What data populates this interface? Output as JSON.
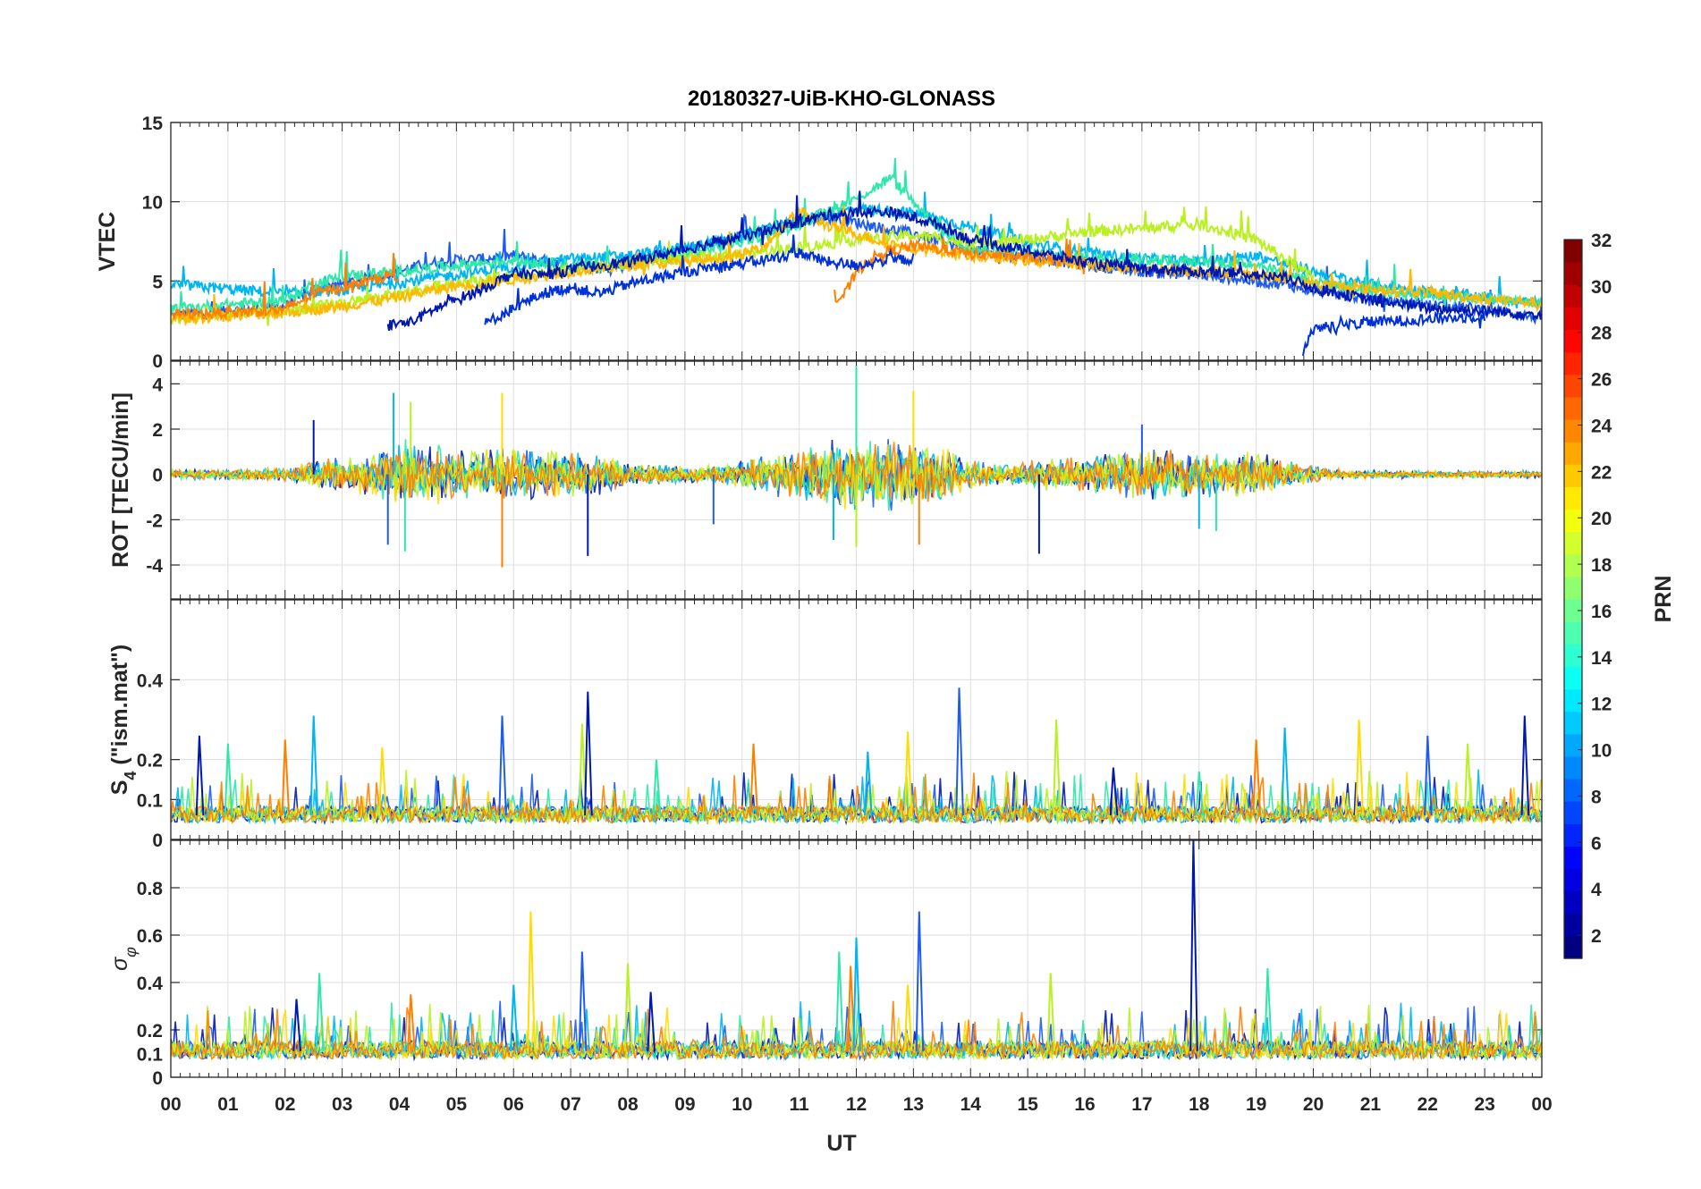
{
  "chart_data": {
    "type": "line",
    "title": "20180327-UiB-KHO-GLONASS",
    "xlabel": "UT",
    "x_ticks": [
      "00",
      "01",
      "02",
      "03",
      "04",
      "05",
      "06",
      "07",
      "08",
      "09",
      "10",
      "11",
      "12",
      "13",
      "14",
      "15",
      "16",
      "17",
      "18",
      "19",
      "20",
      "21",
      "22",
      "23",
      "00"
    ],
    "xlim": [
      0,
      24
    ],
    "grid": true,
    "panels": [
      {
        "name": "vtec",
        "ylabel": "VTEC",
        "ylim": [
          0,
          15
        ],
        "yticks": [
          "0",
          "5",
          "10",
          "15"
        ],
        "series": [
          {
            "prn": 7,
            "color": "#1e5cf0",
            "x": [
              0,
              1,
              2,
              2.5,
              3,
              3.5,
              4,
              4.5,
              5,
              5.5,
              6,
              6.5,
              7,
              7.5,
              8,
              8.5,
              9,
              9.5,
              10,
              10.5,
              11,
              11.5,
              12,
              12.5,
              13,
              13.5,
              14,
              14.5,
              15,
              15.5,
              16,
              16.5,
              17,
              17.5,
              18,
              18.5,
              19,
              19.5,
              20,
              20.5,
              21,
              21.5,
              22,
              22.5,
              23,
              23.5,
              24
            ],
            "y": [
              2.8,
              3.1,
              3.4,
              4.5,
              4.8,
              5.2,
              5.6,
              6.1,
              6.3,
              6.4,
              6.6,
              6.3,
              6.0,
              5.8,
              6.0,
              6.5,
              7.0,
              7.4,
              7.9,
              8.4,
              8.8,
              9.0,
              8.7,
              8.3,
              8.0,
              7.4,
              7.0,
              6.7,
              6.5,
              6.3,
              6.0,
              5.8,
              5.6,
              5.5,
              5.4,
              5.2,
              5.0,
              4.8,
              4.4,
              4.1,
              3.9,
              3.7,
              3.5,
              3.4,
              3.2,
              3.0,
              2.6
            ]
          },
          {
            "prn": 11,
            "color": "#00b5f0",
            "x": [
              0,
              1,
              2,
              3,
              4,
              5,
              6,
              7,
              8,
              9,
              10,
              11,
              12,
              13,
              14,
              15,
              16,
              17,
              18,
              19,
              20,
              21,
              22,
              23,
              24
            ],
            "y": [
              4.8,
              4.5,
              4.2,
              4.4,
              4.9,
              5.4,
              5.9,
              6.4,
              6.6,
              7.1,
              7.8,
              8.8,
              9.6,
              9.3,
              8.4,
              7.4,
              6.8,
              6.4,
              6.2,
              6.6,
              5.6,
              4.8,
              4.3,
              4.0,
              3.6
            ]
          },
          {
            "prn": 14,
            "color": "#2ee8a8",
            "x": [
              0,
              1,
              2,
              2.5,
              3,
              4,
              5,
              6,
              7,
              8,
              9,
              10,
              11,
              12,
              12.6,
              13,
              13.5,
              14,
              15,
              16,
              17,
              18,
              19,
              20,
              21,
              22,
              23,
              24
            ],
            "y": [
              3.2,
              3.5,
              3.8,
              4.8,
              5.3,
              5.6,
              6.0,
              6.3,
              6.0,
              6.1,
              6.6,
              7.5,
              8.6,
              10.2,
              11.5,
              10.0,
              8.2,
              7.0,
              6.8,
              6.5,
              6.4,
              6.2,
              6.1,
              5.0,
              4.4,
              4.1,
              3.9,
              3.6
            ]
          },
          {
            "prn": 18,
            "color": "#b8f020",
            "x": [
              0,
              1,
              2,
              3,
              4,
              5,
              6,
              7,
              8,
              9,
              10,
              11,
              12,
              13,
              14,
              15,
              16,
              17,
              18,
              19,
              20
            ],
            "y": [
              2.6,
              2.9,
              3.1,
              3.6,
              4.2,
              4.9,
              5.3,
              5.7,
              6.1,
              6.4,
              6.7,
              7.1,
              7.6,
              7.9,
              7.4,
              7.6,
              8.1,
              8.3,
              8.6,
              7.6,
              5.2
            ]
          },
          {
            "prn": 22,
            "color": "#ffb800",
            "x": [
              0,
              1,
              2,
              3,
              4,
              5,
              6,
              7,
              8,
              9,
              10,
              10.5,
              11,
              11.5,
              12,
              12.5,
              13,
              13.5,
              14,
              15,
              16,
              17,
              18,
              19,
              20,
              21,
              22,
              23,
              24
            ],
            "y": [
              2.6,
              2.8,
              3.0,
              3.4,
              4.0,
              4.7,
              5.1,
              5.6,
              6.0,
              6.2,
              6.6,
              7.6,
              9.4,
              8.5,
              8.0,
              7.4,
              7.1,
              6.9,
              6.6,
              6.3,
              6.0,
              5.8,
              5.6,
              5.4,
              4.8,
              4.5,
              4.3,
              3.9,
              3.6
            ]
          },
          {
            "prn": 24,
            "color": "#ff8000",
            "x": [
              0,
              1,
              2,
              2.5,
              3,
              3.5,
              3.8,
              4,
              11.6,
              11.8,
              12.0,
              12.2,
              12.5,
              13,
              13.5,
              14,
              15,
              15.5,
              16
            ],
            "y": [
              2.9,
              3.0,
              3.2,
              4.2,
              4.6,
              5.0,
              5.4,
              5.2,
              3.6,
              4.2,
              5.5,
              6.3,
              6.8,
              7.2,
              7.0,
              6.7,
              6.5,
              6.3,
              6.2
            ]
          },
          {
            "prn": 2,
            "color": "#0018b0",
            "x": [
              3.8,
              4.2,
              4.6,
              5.0,
              5.5,
              6.0,
              6.5,
              7.0,
              7.5,
              8.0,
              8.5,
              9.0,
              9.5,
              10.0,
              10.5,
              11.0,
              11.5,
              12.0,
              12.5,
              13.0,
              13.5,
              14.0,
              16.0,
              17.0,
              18.0,
              19.0,
              19.5,
              20.0,
              20.5,
              21.0,
              22.0,
              23.0,
              24.0
            ],
            "y": [
              2.2,
              2.4,
              3.2,
              3.8,
              4.6,
              5.5,
              5.4,
              5.7,
              6.0,
              6.2,
              6.6,
              7.0,
              7.4,
              7.8,
              8.2,
              8.7,
              9.2,
              9.3,
              9.4,
              9.0,
              8.5,
              7.6,
              6.2,
              5.8,
              5.6,
              5.4,
              5.2,
              4.6,
              4.2,
              3.8,
              3.3,
              3.1,
              2.9
            ]
          },
          {
            "prn": 4,
            "color": "#0030d8",
            "x": [
              5.5,
              6.0,
              6.5,
              7.0,
              7.5,
              8.0,
              8.5,
              9.0,
              9.5,
              10.0,
              10.5,
              11.0,
              11.5,
              12.0,
              12.5,
              13.0,
              19.8,
              20.0,
              20.5,
              21.0,
              22.0,
              23.0
            ],
            "y": [
              2.3,
              3.3,
              4.2,
              4.6,
              4.2,
              4.8,
              5.2,
              5.6,
              5.9,
              6.1,
              6.4,
              6.8,
              6.2,
              6.0,
              6.3,
              6.4,
              0.2,
              2.0,
              2.2,
              2.4,
              2.6,
              2.8
            ]
          }
        ]
      },
      {
        "name": "rot",
        "ylabel": "ROT [TECU/min]",
        "ylim": [
          -5.5,
          5
        ],
        "yticks": [
          "-4",
          "-2",
          "0",
          "2",
          "4"
        ],
        "envelope": {
          "x": [
            0,
            1,
            2,
            2.5,
            3,
            3.5,
            4,
            4.5,
            5,
            5.5,
            6,
            6.5,
            7,
            7.5,
            8,
            8.5,
            9,
            9.5,
            10,
            10.5,
            11,
            11.5,
            12,
            12.5,
            13,
            13.5,
            14,
            14.5,
            15,
            15.5,
            16,
            16.5,
            17,
            17.5,
            18,
            18.5,
            19,
            19.5,
            20,
            20.5,
            21,
            22,
            23,
            24
          ],
          "amp": [
            0.2,
            0.2,
            0.25,
            0.6,
            0.7,
            0.9,
            1.4,
            1.3,
            1.0,
            1.0,
            1.1,
            1.0,
            0.9,
            0.8,
            0.5,
            0.4,
            0.35,
            0.35,
            0.6,
            0.8,
            1.0,
            1.3,
            1.4,
            1.5,
            1.5,
            1.1,
            0.6,
            0.4,
            0.5,
            0.7,
            0.7,
            0.9,
            1.0,
            1.0,
            1.0,
            0.9,
            0.9,
            0.6,
            0.35,
            0.2,
            0.15,
            0.15,
            0.15,
            0.15
          ]
        },
        "spikes": [
          [
            2.5,
            2.4
          ],
          [
            3.8,
            -3.1
          ],
          [
            3.9,
            3.6
          ],
          [
            4.1,
            -3.4
          ],
          [
            4.2,
            3.2
          ],
          [
            5.8,
            3.6
          ],
          [
            5.8,
            -4.1
          ],
          [
            7.3,
            -3.6
          ],
          [
            9.5,
            -2.2
          ],
          [
            11.6,
            -2.9
          ],
          [
            12.0,
            4.8
          ],
          [
            12.0,
            -3.2
          ],
          [
            13.0,
            3.7
          ],
          [
            13.1,
            -3.1
          ],
          [
            15.2,
            -3.5
          ],
          [
            17.0,
            2.2
          ],
          [
            18.0,
            -2.4
          ],
          [
            18.3,
            -2.5
          ]
        ],
        "colors": [
          "#0018b0",
          "#1e5cf0",
          "#00b5f0",
          "#2ee8a8",
          "#b8f020",
          "#ffdc00",
          "#ff8000"
        ]
      },
      {
        "name": "s4",
        "ylabel_main": "S",
        "ylabel_sub": "4",
        "ylabel_rest": " (\"ism.mat\")",
        "ylim": [
          0,
          0.6
        ],
        "yticks": [
          "0",
          "0.1",
          "0.2",
          "0.4"
        ],
        "tick_values": [
          0,
          0.1,
          0.2,
          0.4
        ],
        "baseline": 0.06,
        "spikes": [
          [
            0.5,
            0.26
          ],
          [
            1.0,
            0.24
          ],
          [
            2.0,
            0.25
          ],
          [
            2.5,
            0.31
          ],
          [
            3.7,
            0.23
          ],
          [
            5.8,
            0.31
          ],
          [
            7.2,
            0.29
          ],
          [
            7.3,
            0.37
          ],
          [
            8.5,
            0.2
          ],
          [
            10.2,
            0.24
          ],
          [
            12.2,
            0.22
          ],
          [
            12.9,
            0.27
          ],
          [
            13.8,
            0.38
          ],
          [
            15.5,
            0.3
          ],
          [
            16.5,
            0.18
          ],
          [
            18.0,
            0.17
          ],
          [
            19.0,
            0.25
          ],
          [
            19.5,
            0.28
          ],
          [
            20.8,
            0.3
          ],
          [
            22.0,
            0.26
          ],
          [
            22.7,
            0.24
          ],
          [
            23.7,
            0.31
          ]
        ],
        "colors": [
          "#0018b0",
          "#1e5cf0",
          "#00b5f0",
          "#2ee8a8",
          "#b8f020",
          "#ffdc00",
          "#ff8000"
        ]
      },
      {
        "name": "sigma",
        "ylabel_main": "σ",
        "ylabel_sub": "φ",
        "ylim": [
          0,
          1
        ],
        "yticks": [
          "0",
          "0.1",
          "0.2",
          "0.4",
          "0.6",
          "0.8"
        ],
        "tick_values": [
          0,
          0.1,
          0.2,
          0.4,
          0.6,
          0.8
        ],
        "baseline": 0.11,
        "spikes": [
          [
            2.2,
            0.33
          ],
          [
            2.6,
            0.44
          ],
          [
            4.2,
            0.35
          ],
          [
            6.0,
            0.39
          ],
          [
            6.3,
            0.7
          ],
          [
            7.2,
            0.53
          ],
          [
            8.0,
            0.48
          ],
          [
            8.4,
            0.36
          ],
          [
            11.7,
            0.53
          ],
          [
            11.9,
            0.47
          ],
          [
            12.0,
            0.59
          ],
          [
            12.9,
            0.39
          ],
          [
            13.1,
            0.7
          ],
          [
            15.4,
            0.44
          ],
          [
            17.9,
            1.0
          ],
          [
            19.2,
            0.46
          ]
        ],
        "colors": [
          "#0018b0",
          "#1e5cf0",
          "#00b5f0",
          "#2ee8a8",
          "#b8f020",
          "#ffdc00",
          "#ff8000"
        ]
      }
    ],
    "colorbar": {
      "label": "PRN",
      "range": [
        1,
        32
      ],
      "ticks": [
        "2",
        "4",
        "6",
        "8",
        "10",
        "12",
        "14",
        "16",
        "18",
        "20",
        "22",
        "24",
        "26",
        "28",
        "30",
        "32"
      ],
      "colormap": "jet"
    }
  }
}
